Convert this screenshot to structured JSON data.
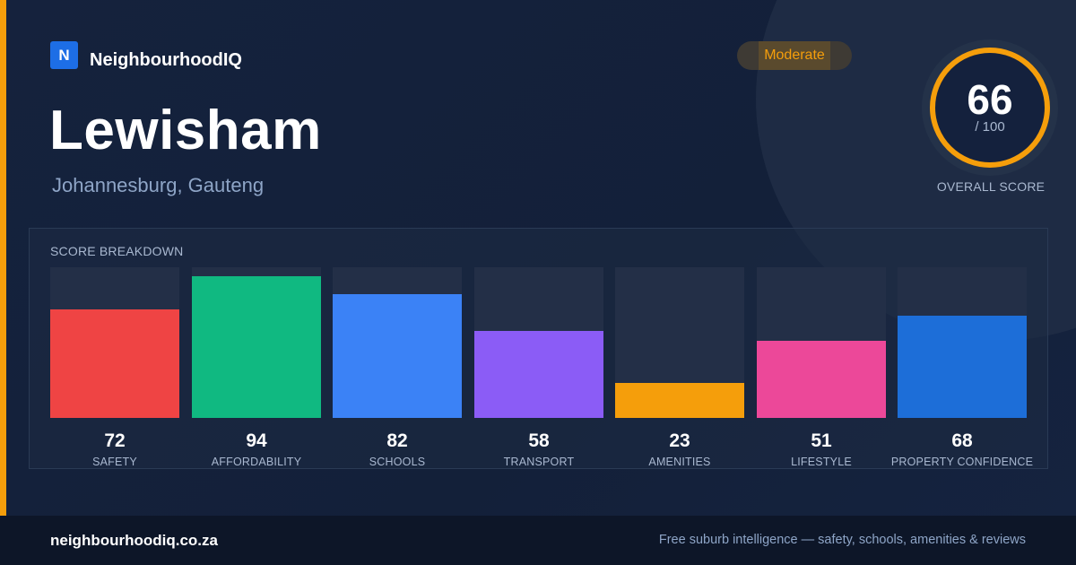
{
  "brand": {
    "logo_letter": "N",
    "name": "NeighbourhoodIQ"
  },
  "suburb": {
    "name": "Lewisham",
    "location": "Johannesburg, Gauteng"
  },
  "rating_badge": "Moderate",
  "overall": {
    "score": "66",
    "max": "/ 100",
    "label": "OVERALL SCORE"
  },
  "breakdown": {
    "title": "SCORE BREAKDOWN",
    "max_value": 100,
    "items": [
      {
        "label": "SAFETY",
        "value": 72,
        "color": "#ef4444"
      },
      {
        "label": "AFFORDABILITY",
        "value": 94,
        "color": "#10b981"
      },
      {
        "label": "SCHOOLS",
        "value": 82,
        "color": "#3b82f6"
      },
      {
        "label": "TRANSPORT",
        "value": 58,
        "color": "#8b5cf6"
      },
      {
        "label": "AMENITIES",
        "value": 23,
        "color": "#f59e0b"
      },
      {
        "label": "LIFESTYLE",
        "value": 51,
        "color": "#ec4899"
      },
      {
        "label": "PROPERTY CONFIDENCE",
        "value": 68,
        "color": "#1d6ed8"
      }
    ]
  },
  "footer": {
    "domain": "neighbourhoodiq.co.za",
    "tagline": "Free suburb intelligence — safety, schools, amenities & reviews"
  },
  "colors": {
    "accent": "#f59e0b",
    "background": "#14213d",
    "footer": "#0d1628"
  }
}
